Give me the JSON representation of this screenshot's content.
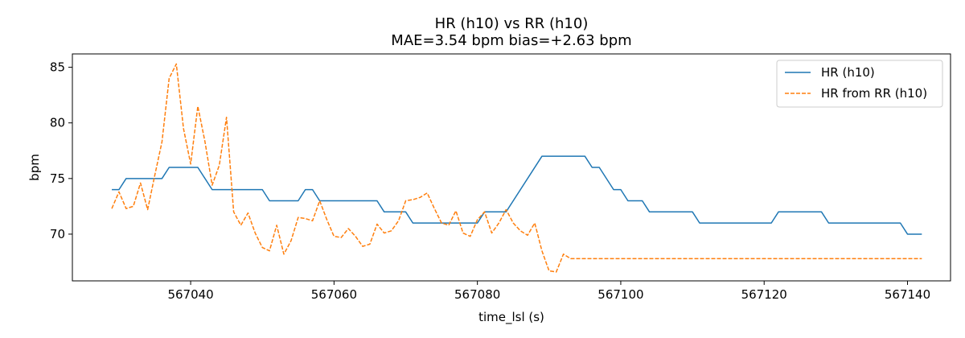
{
  "chart_data": {
    "type": "line",
    "title": "HR (h10) vs RR (h10)",
    "subtitle": "MAE=3.54 bpm  bias=+2.63 bpm",
    "xlabel": "time_lsl (s)",
    "ylabel": "bpm",
    "xlim": [
      567023.5,
      567146
    ],
    "ylim": [
      65.8,
      86.2
    ],
    "xticks": [
      567040,
      567060,
      567080,
      567100,
      567120,
      567140
    ],
    "yticks": [
      70,
      75,
      80,
      85
    ],
    "grid": false,
    "legend_position": "top-right",
    "series": [
      {
        "name": "HR (h10)",
        "color": "#1f77b4",
        "style": "solid",
        "x": [
          567029,
          567030,
          567031,
          567036,
          567037,
          567041,
          567043,
          567050,
          567051,
          567055,
          567056,
          567057,
          567058,
          567066,
          567067,
          567070,
          567071,
          567080,
          567081,
          567084,
          567089,
          567095,
          567096,
          567097,
          567099,
          567100,
          567101,
          567103,
          567104,
          567110,
          567111,
          567121,
          567122,
          567128,
          567129,
          567139,
          567140,
          567142
        ],
        "y": [
          74,
          74,
          75,
          75,
          76,
          76,
          74,
          74,
          73,
          73,
          74,
          74,
          73,
          73,
          72,
          72,
          71,
          71,
          72,
          72,
          77,
          77,
          76,
          76,
          74,
          74,
          73,
          73,
          72,
          72,
          71,
          71,
          72,
          72,
          71,
          71,
          70,
          70
        ]
      },
      {
        "name": "HR from RR (h10)",
        "color": "#ff7f0e",
        "style": "dashed",
        "x": [
          567029,
          567030,
          567031,
          567032,
          567033,
          567034,
          567035,
          567036,
          567037,
          567038,
          567039,
          567040,
          567041,
          567042,
          567043,
          567044,
          567045,
          567046,
          567047,
          567048,
          567049,
          567050,
          567051,
          567052,
          567053,
          567054,
          567055,
          567056,
          567057,
          567058,
          567059,
          567060,
          567061,
          567062,
          567063,
          567064,
          567065,
          567066,
          567067,
          567068,
          567069,
          567070,
          567071,
          567072,
          567073,
          567074,
          567075,
          567076,
          567077,
          567078,
          567079,
          567080,
          567081,
          567082,
          567083,
          567084,
          567085,
          567086,
          567087,
          567088,
          567089,
          567090,
          567091,
          567092,
          567093,
          567142
        ],
        "y": [
          72.3,
          73.8,
          72.3,
          72.5,
          74.6,
          72.2,
          75.3,
          78.3,
          84.0,
          85.3,
          79.5,
          76.3,
          81.5,
          78.3,
          74.4,
          76.2,
          80.5,
          72.0,
          70.8,
          71.9,
          70.1,
          68.8,
          68.5,
          70.8,
          68.2,
          69.4,
          71.5,
          71.4,
          71.2,
          73.0,
          71.3,
          69.8,
          69.7,
          70.5,
          69.8,
          68.9,
          69.1,
          70.9,
          70.1,
          70.3,
          71.2,
          73.0,
          73.1,
          73.3,
          73.7,
          72.3,
          71.0,
          70.8,
          72.1,
          70.1,
          69.8,
          71.3,
          72.0,
          70.1,
          71.0,
          72.2,
          71.0,
          70.3,
          69.9,
          71.0,
          68.5,
          66.7,
          66.6,
          68.2,
          67.8,
          67.8
        ]
      }
    ]
  }
}
